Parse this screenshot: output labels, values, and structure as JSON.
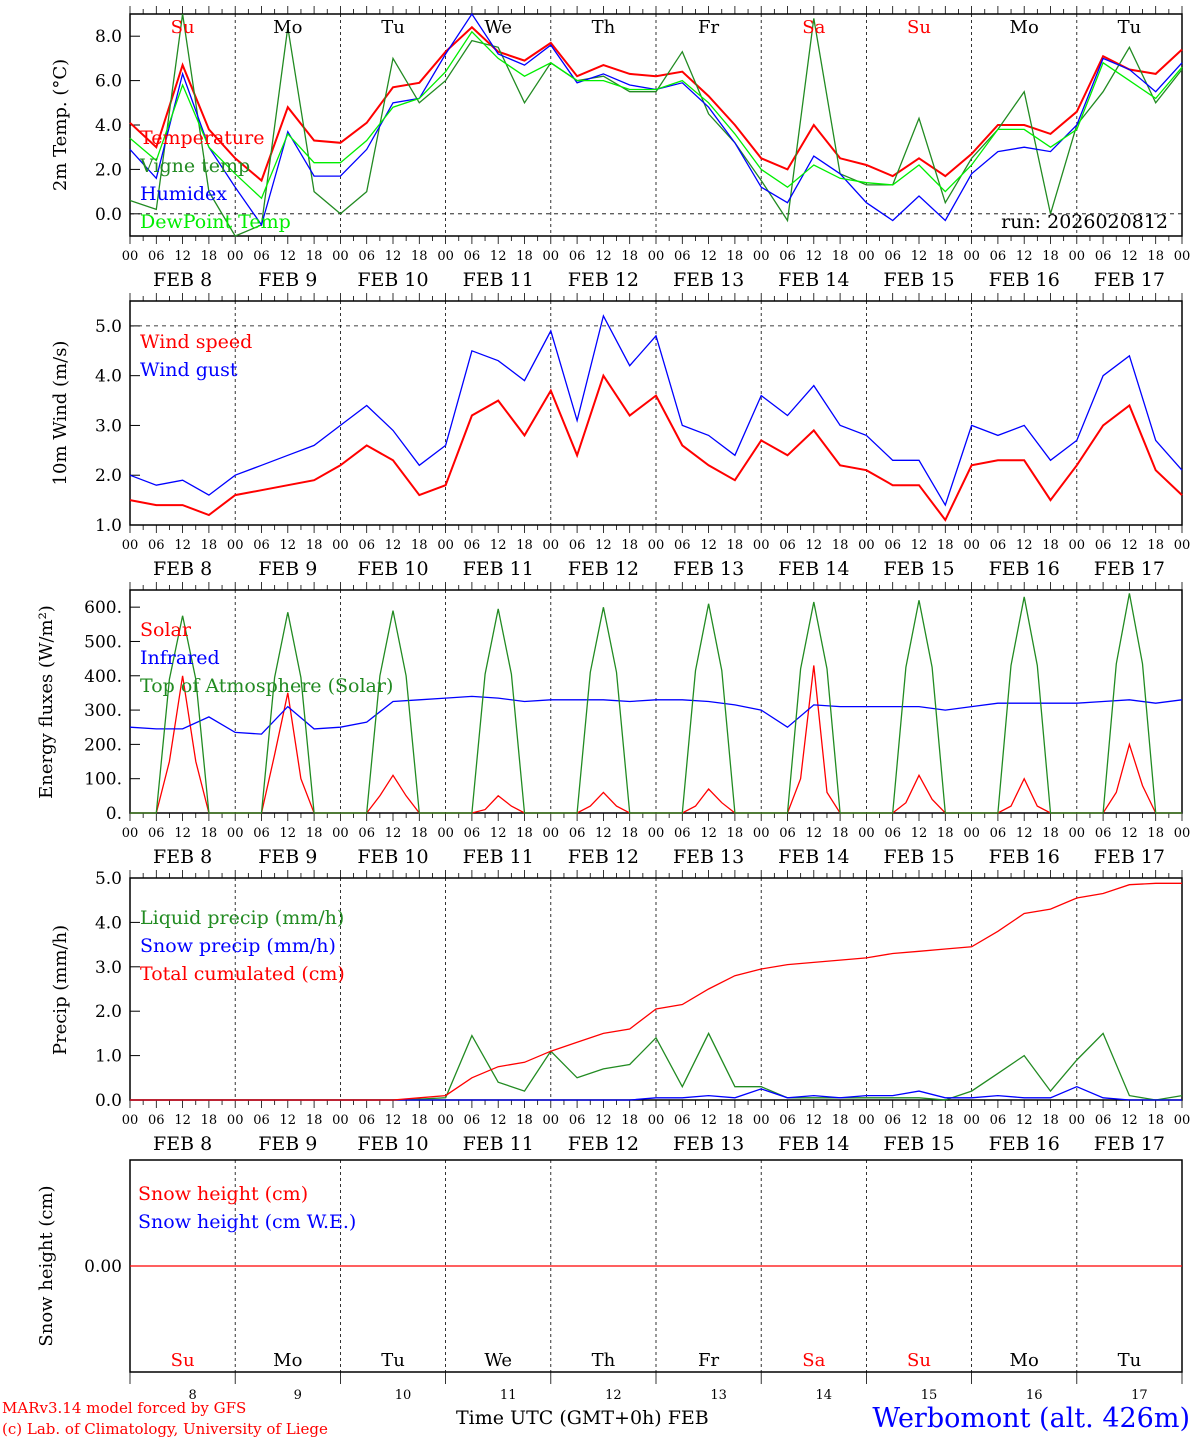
{
  "x_axis": {
    "start": "FEB 8 00 UTC",
    "end": "FEB 18 00 UTC",
    "hour_labels": [
      "00",
      "06",
      "12",
      "18"
    ],
    "date_labels": [
      "FEB  8",
      "FEB  9",
      "FEB 10",
      "FEB 11",
      "FEB 12",
      "FEB 13",
      "FEB 14",
      "FEB 15",
      "FEB 16",
      "FEB 17"
    ],
    "day_labels": [
      "Su",
      "Mo",
      "Tu",
      "We",
      "Th",
      "Fr",
      "Sa",
      "Su",
      "Mo",
      "Tu"
    ],
    "day_colors": [
      "#ff0000",
      "#000000",
      "#000000",
      "#000000",
      "#000000",
      "#000000",
      "#ff0000",
      "#ff0000",
      "#000000",
      "#000000"
    ],
    "day_numbers": [
      "8",
      "9",
      "10",
      "11",
      "12",
      "13",
      "14",
      "15",
      "16",
      "17"
    ],
    "title": "Time UTC (GMT+0h) FEB"
  },
  "footer": {
    "model": "MARv3.14 model forced by GFS",
    "credit": "(c) Lab. of Climatology, University of Liege",
    "location": "Werbomont (alt. 426m)"
  },
  "chart_data": [
    {
      "type": "line",
      "ylabel": "2m Temp. (°C)",
      "ylim": [
        -1,
        9
      ],
      "yticks": [
        0,
        2,
        4,
        6,
        8
      ],
      "ytick_labels": [
        "0.0",
        "2.0",
        "4.0",
        "6.0",
        "8.0"
      ],
      "reference_lines": [
        0
      ],
      "annotation": "run: 2026020812",
      "step_hours": 6,
      "series": [
        {
          "name": "Temperature",
          "color": "#ff0000",
          "values": [
            4.1,
            3.0,
            6.7,
            3.8,
            2.5,
            1.5,
            4.8,
            3.3,
            3.2,
            4.1,
            5.7,
            5.9,
            7.3,
            8.4,
            7.3,
            6.9,
            7.7,
            6.2,
            6.7,
            6.3,
            6.2,
            6.4,
            5.3,
            4.0,
            2.5,
            2.0,
            4.0,
            2.5,
            2.2,
            1.7,
            2.5,
            1.7,
            2.7,
            4.0,
            4.0,
            3.6,
            4.6,
            7.1,
            6.5,
            6.3,
            7.4
          ]
        },
        {
          "name": "Vigne temp",
          "color": "#228b22",
          "values": [
            0.6,
            0.2,
            9.0,
            1.0,
            -1.0,
            -0.5,
            8.4,
            1.0,
            0.0,
            1.0,
            7.0,
            5.0,
            6.0,
            7.8,
            7.5,
            5.0,
            6.8,
            6.0,
            6.2,
            5.5,
            5.5,
            7.3,
            4.5,
            3.2,
            1.5,
            -0.3,
            8.8,
            1.8,
            1.3,
            1.3,
            4.3,
            0.5,
            2.5,
            3.8,
            5.5,
            0.0,
            4.0,
            5.5,
            7.5,
            5.0,
            6.5
          ]
        },
        {
          "name": "Humidex",
          "color": "#0000ff",
          "values": [
            2.9,
            1.6,
            6.3,
            3.0,
            1.2,
            -0.5,
            3.7,
            1.7,
            1.7,
            2.9,
            5.0,
            5.2,
            7.2,
            9.0,
            7.2,
            6.7,
            7.6,
            5.9,
            6.3,
            5.8,
            5.6,
            5.9,
            4.8,
            3.2,
            1.2,
            0.5,
            2.6,
            1.8,
            0.5,
            -0.3,
            0.8,
            -0.3,
            1.8,
            2.8,
            3.0,
            2.8,
            4.0,
            7.0,
            6.5,
            5.5,
            6.8
          ]
        },
        {
          "name": "DewPoint Temp",
          "color": "#00ee00",
          "values": [
            3.4,
            2.4,
            5.8,
            3.0,
            1.8,
            0.7,
            3.6,
            2.3,
            2.3,
            3.3,
            4.8,
            5.2,
            6.4,
            8.2,
            7.0,
            6.2,
            6.8,
            6.0,
            6.0,
            5.6,
            5.6,
            6.0,
            5.0,
            3.6,
            2.0,
            1.2,
            2.2,
            1.6,
            1.4,
            1.3,
            2.2,
            1.0,
            2.2,
            3.8,
            3.8,
            3.0,
            3.8,
            6.8,
            6.0,
            5.2,
            6.6
          ]
        }
      ]
    },
    {
      "type": "line",
      "ylabel": "10m Wind (m/s)",
      "ylim": [
        1,
        5.5
      ],
      "yticks": [
        1,
        2,
        3,
        4,
        5
      ],
      "ytick_labels": [
        "1.0",
        "2.0",
        "3.0",
        "4.0",
        "5.0"
      ],
      "reference_lines": [
        5
      ],
      "step_hours": 6,
      "series": [
        {
          "name": "Wind speed",
          "color": "#ff0000",
          "values": [
            1.5,
            1.4,
            1.4,
            1.2,
            1.6,
            1.7,
            1.8,
            1.9,
            2.2,
            2.6,
            2.3,
            1.6,
            1.8,
            3.2,
            3.5,
            2.8,
            3.7,
            2.4,
            4.0,
            3.2,
            3.6,
            2.6,
            2.2,
            1.9,
            2.7,
            2.4,
            2.9,
            2.2,
            2.1,
            1.8,
            1.8,
            1.1,
            2.2,
            2.3,
            2.3,
            1.5,
            2.2,
            3.0,
            3.4,
            2.1,
            1.6
          ]
        },
        {
          "name": "Wind gust",
          "color": "#0000ff",
          "values": [
            2.0,
            1.8,
            1.9,
            1.6,
            2.0,
            2.2,
            2.4,
            2.6,
            3.0,
            3.4,
            2.9,
            2.2,
            2.6,
            4.5,
            4.3,
            3.9,
            4.9,
            3.1,
            5.2,
            4.2,
            4.8,
            3.0,
            2.8,
            2.4,
            3.6,
            3.2,
            3.8,
            3.0,
            2.8,
            2.3,
            2.3,
            1.4,
            3.0,
            2.8,
            3.0,
            2.3,
            2.7,
            4.0,
            4.4,
            2.7,
            2.1
          ]
        }
      ]
    },
    {
      "type": "line",
      "ylabel": "Energy fluxes (W/m²)",
      "ylim": [
        0,
        650
      ],
      "yticks": [
        0,
        100,
        200,
        300,
        400,
        500,
        600
      ],
      "ytick_labels": [
        "0.",
        "100.",
        "200.",
        "300.",
        "400.",
        "500.",
        "600."
      ],
      "reference_lines": [],
      "series": [
        {
          "name": "Solar",
          "color": "#ff0000",
          "step_hours": 3,
          "values": [
            0,
            0,
            0,
            150,
            400,
            150,
            0,
            0,
            0,
            0,
            0,
            170,
            350,
            100,
            0,
            0,
            0,
            0,
            0,
            50,
            110,
            50,
            0,
            0,
            0,
            0,
            0,
            10,
            50,
            20,
            0,
            0,
            0,
            0,
            0,
            20,
            60,
            20,
            0,
            0,
            0,
            0,
            0,
            20,
            70,
            30,
            0,
            0,
            0,
            0,
            0,
            100,
            430,
            60,
            0,
            0,
            0,
            0,
            0,
            30,
            110,
            40,
            0,
            0,
            0,
            0,
            0,
            20,
            100,
            20,
            0,
            0,
            0,
            0,
            0,
            60,
            200,
            80,
            0,
            0,
            0
          ]
        },
        {
          "name": "Infrared",
          "color": "#0000ff",
          "step_hours": 6,
          "values": [
            250,
            245,
            245,
            280,
            235,
            230,
            310,
            245,
            250,
            265,
            325,
            330,
            335,
            340,
            335,
            325,
            330,
            330,
            330,
            325,
            330,
            330,
            325,
            315,
            300,
            250,
            315,
            310,
            310,
            310,
            310,
            300,
            310,
            320,
            320,
            320,
            320,
            325,
            330,
            320,
            330
          ]
        },
        {
          "name": "Top of Atmosphere (Solar)",
          "color": "#228b22",
          "step_hours": 3,
          "values": [
            0,
            0,
            0,
            390,
            575,
            390,
            0,
            0,
            0,
            0,
            0,
            395,
            585,
            395,
            0,
            0,
            0,
            0,
            0,
            400,
            590,
            400,
            0,
            0,
            0,
            0,
            0,
            405,
            595,
            405,
            0,
            0,
            0,
            0,
            0,
            410,
            600,
            410,
            0,
            0,
            0,
            0,
            0,
            415,
            610,
            415,
            0,
            0,
            0,
            0,
            0,
            420,
            615,
            420,
            0,
            0,
            0,
            0,
            0,
            425,
            620,
            425,
            0,
            0,
            0,
            0,
            0,
            430,
            630,
            430,
            0,
            0,
            0,
            0,
            0,
            435,
            640,
            435,
            0,
            0,
            0
          ]
        }
      ]
    },
    {
      "type": "line",
      "ylabel": "Precip (mm/h)",
      "ylim": [
        0,
        5
      ],
      "yticks": [
        0,
        1,
        2,
        3,
        4,
        5
      ],
      "ytick_labels": [
        "0.0",
        "1.0",
        "2.0",
        "3.0",
        "4.0",
        "5.0"
      ],
      "reference_lines": [],
      "step_hours": 6,
      "series": [
        {
          "name": "Liquid precip (mm/h)",
          "color": "#228b22",
          "values": [
            0,
            0,
            0,
            0,
            0,
            0,
            0,
            0,
            0,
            0,
            0,
            0.02,
            0.05,
            1.45,
            0.4,
            0.2,
            1.1,
            0.5,
            0.7,
            0.8,
            1.4,
            0.3,
            1.5,
            0.3,
            0.3,
            0.05,
            0.05,
            0.05,
            0.05,
            0.05,
            0.05,
            0,
            0.2,
            0.6,
            1.0,
            0.2,
            0.9,
            1.5,
            0.1,
            0,
            0.1
          ]
        },
        {
          "name": "Snow precip (mm/h)",
          "color": "#0000ff",
          "values": [
            0,
            0,
            0,
            0,
            0,
            0,
            0,
            0,
            0,
            0,
            0,
            0,
            0,
            0,
            0,
            0,
            0,
            0,
            0,
            0,
            0.05,
            0.05,
            0.1,
            0.05,
            0.25,
            0.05,
            0.1,
            0.05,
            0.1,
            0.1,
            0.2,
            0.05,
            0.05,
            0.1,
            0.05,
            0.05,
            0.3,
            0.05,
            0,
            0,
            0
          ]
        },
        {
          "name": "Total cumulated (cm)",
          "color": "#ff0000",
          "values": [
            0,
            0,
            0,
            0,
            0,
            0,
            0,
            0,
            0,
            0,
            0,
            0.05,
            0.1,
            0.5,
            0.75,
            0.85,
            1.1,
            1.3,
            1.5,
            1.6,
            2.05,
            2.15,
            2.5,
            2.8,
            2.95,
            3.05,
            3.1,
            3.15,
            3.2,
            3.3,
            3.35,
            3.4,
            3.45,
            3.8,
            4.2,
            4.3,
            4.55,
            4.65,
            4.85,
            4.88,
            4.88
          ]
        }
      ]
    },
    {
      "type": "line",
      "ylabel": "Snow height (cm)",
      "ylim": [
        -1,
        1
      ],
      "yticks": [
        0
      ],
      "ytick_labels": [
        "0.00"
      ],
      "reference_lines": [],
      "step_hours": 6,
      "series": [
        {
          "name": "Snow height (cm)",
          "color": "#ff0000",
          "values": [
            0,
            0,
            0,
            0,
            0,
            0,
            0,
            0,
            0,
            0,
            0,
            0,
            0,
            0,
            0,
            0,
            0,
            0,
            0,
            0,
            0,
            0,
            0,
            0,
            0,
            0,
            0,
            0,
            0,
            0,
            0,
            0,
            0,
            0,
            0,
            0,
            0,
            0,
            0,
            0,
            0
          ]
        },
        {
          "name": "Snow height (cm W.E.)",
          "color": "#0000ff",
          "values": []
        }
      ]
    }
  ]
}
